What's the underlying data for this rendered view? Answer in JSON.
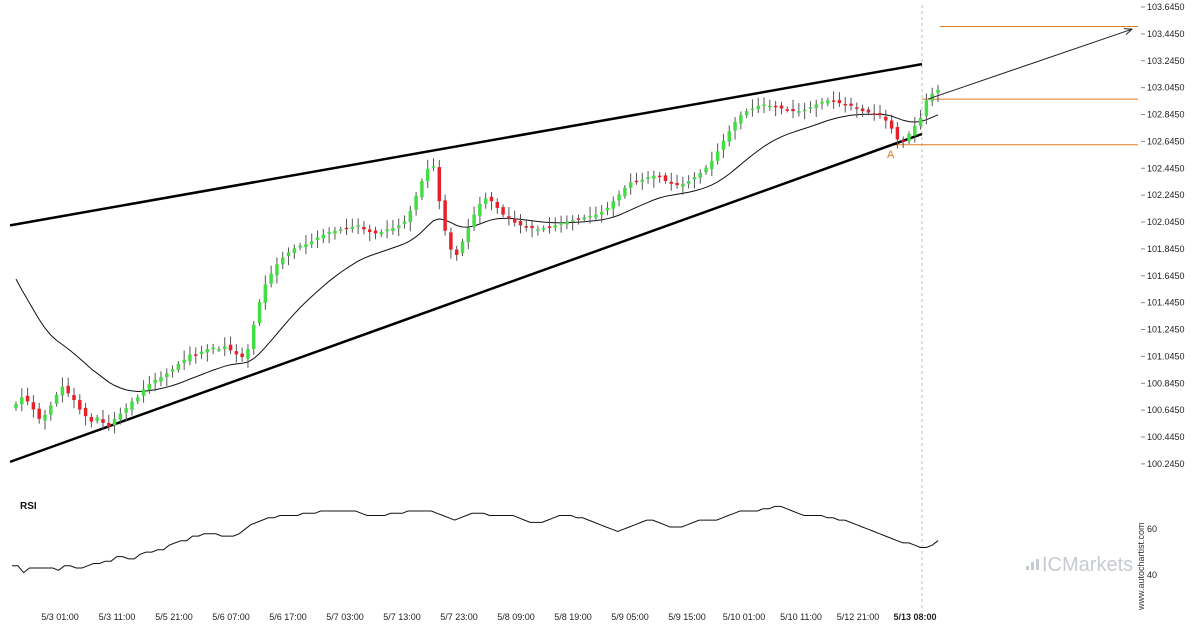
{
  "chart_data": {
    "type": "candlestick",
    "y_ticks": [
      "103.6450",
      "103.4450",
      "103.2450",
      "103.0450",
      "102.8450",
      "102.6450",
      "102.4450",
      "102.2450",
      "102.0450",
      "101.8450",
      "101.6450",
      "101.4450",
      "101.2450",
      "101.0450",
      "100.8450",
      "100.6450",
      "100.4450",
      "100.2450"
    ],
    "ylim": [
      100.14,
      103.66
    ],
    "x_ticks": [
      "5/3 01:00",
      "5/3 11:00",
      "5/5 21:00",
      "5/6 07:00",
      "5/6 17:00",
      "5/7 03:00",
      "5/7 13:00",
      "5/7 23:00",
      "5/8 09:00",
      "5/8 19:00",
      "5/9 05:00",
      "5/9 15:00",
      "5/10 01:00",
      "5/10 11:00",
      "5/12 21:00",
      "5/13 08:00"
    ],
    "current_time_label": "5/13 08:00",
    "bar_count": 160,
    "closes": [
      100.69,
      100.74,
      100.71,
      100.65,
      100.58,
      100.61,
      100.68,
      100.76,
      100.82,
      100.77,
      100.72,
      100.65,
      100.6,
      100.56,
      100.59,
      100.55,
      100.52,
      100.58,
      100.62,
      100.66,
      100.71,
      100.74,
      100.8,
      100.84,
      100.87,
      100.89,
      100.92,
      100.95,
      100.99,
      101.02,
      101.06,
      101.05,
      101.08,
      101.1,
      101.11,
      101.1,
      101.12,
      101.09,
      101.06,
      101.04,
      101.1,
      101.28,
      101.45,
      101.58,
      101.66,
      101.73,
      101.78,
      101.82,
      101.85,
      101.87,
      101.88,
      101.9,
      101.93,
      101.95,
      101.97,
      101.98,
      101.99,
      102.0,
      102.01,
      102.02,
      101.99,
      101.97,
      101.96,
      101.97,
      101.99,
      102.0,
      102.02,
      102.05,
      102.13,
      102.24,
      102.35,
      102.44,
      102.46,
      102.2,
      101.98,
      101.84,
      101.8,
      101.9,
      102.0,
      102.1,
      102.18,
      102.22,
      102.2,
      102.15,
      102.1,
      102.07,
      102.04,
      102.02,
      102.01,
      102.0,
      101.99,
      102.0,
      102.01,
      102.02,
      102.04,
      102.05,
      102.06,
      102.07,
      102.08,
      102.09,
      102.1,
      102.12,
      102.15,
      102.2,
      102.25,
      102.3,
      102.34,
      102.35,
      102.36,
      102.38,
      102.39,
      102.38,
      102.35,
      102.33,
      102.32,
      102.33,
      102.35,
      102.38,
      102.41,
      102.45,
      102.5,
      102.57,
      102.65,
      102.72,
      102.79,
      102.84,
      102.87,
      102.89,
      102.91,
      102.92,
      102.91,
      102.9,
      102.89,
      102.88,
      102.87,
      102.87,
      102.88,
      102.9,
      102.92,
      102.94,
      102.95,
      102.94,
      102.93,
      102.92,
      102.91,
      102.89,
      102.87,
      102.86,
      102.85,
      102.84,
      102.8,
      102.74,
      102.66,
      102.64,
      102.7,
      102.76,
      102.82,
      102.95,
      103.0,
      103.03
    ],
    "sma_start": 100.12,
    "rsi": {
      "label": "RSI",
      "y_ticks": [
        "60",
        "40"
      ],
      "ylim": [
        29,
        75
      ],
      "values": [
        44,
        44,
        41,
        43,
        43,
        43,
        43,
        43,
        42,
        44,
        44,
        43,
        43,
        44,
        45,
        45,
        46,
        46,
        48,
        48,
        47,
        47,
        49,
        50,
        50,
        51,
        51,
        53,
        54,
        55,
        55,
        57,
        57,
        58,
        58,
        58,
        57,
        57,
        57,
        58,
        60,
        62,
        63,
        64,
        65,
        65,
        66,
        66,
        66,
        66,
        67,
        67,
        67,
        68,
        68,
        68,
        68,
        68,
        68,
        68,
        67,
        66,
        66,
        66,
        66,
        67,
        67,
        67,
        68,
        68,
        68,
        68,
        68,
        67,
        66,
        65,
        64,
        65,
        66,
        67,
        67,
        67,
        66,
        66,
        66,
        66,
        66,
        65,
        64,
        63,
        63,
        63,
        64,
        65,
        66,
        66,
        66,
        65,
        65,
        64,
        63,
        62,
        61,
        60,
        59,
        60,
        61,
        62,
        63,
        64,
        64,
        63,
        62,
        61,
        61,
        61,
        62,
        63,
        64,
        64,
        64,
        64,
        65,
        66,
        67,
        68,
        68,
        68,
        68,
        69,
        69,
        70,
        70,
        69,
        68,
        67,
        66,
        66,
        66,
        66,
        65,
        65,
        64,
        64,
        63,
        62,
        61,
        60,
        59,
        58,
        57,
        56,
        55,
        54,
        54,
        53,
        52,
        52,
        53,
        55
      ]
    },
    "annotations": {
      "point_label": "A"
    }
  },
  "watermark": {
    "brand_prefix": "IC",
    "brand_suffix": "Markets",
    "site": "www.autochartist.com"
  },
  "colors": {
    "up": "#44dd44",
    "down": "#e8202a",
    "wick": "#555555",
    "trendline": "#000000",
    "sma": "#111111",
    "level": "#e07b20",
    "arrow": "#222222",
    "grid": "#bbbbbb",
    "axis": "#dddddd"
  }
}
